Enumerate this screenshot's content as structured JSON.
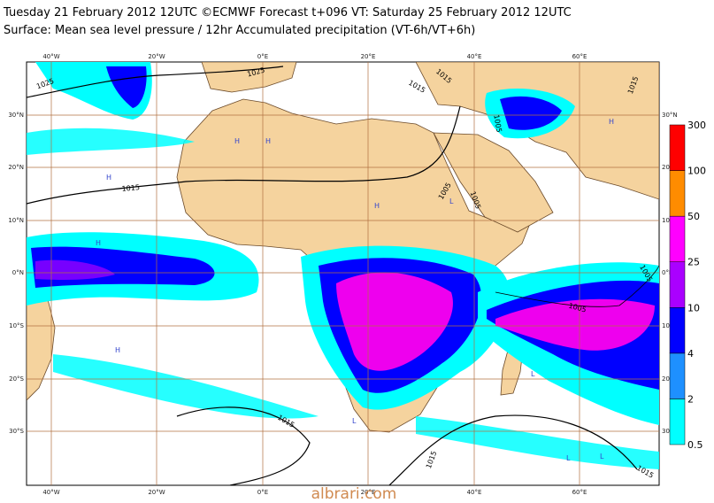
{
  "header": {
    "title": "Tuesday 21 February 2012 12UTC ©ECMWF Forecast t+096 VT: Saturday 25 February 2012 12UTC",
    "subtitle": "Surface: Mean sea level pressure / 12hr Accumulated precipitation (VT-6h/VT+6h)"
  },
  "map": {
    "lon_labels": [
      "40°W",
      "20°W",
      "0°E",
      "20°E",
      "40°E",
      "60°E"
    ],
    "lat_labels": [
      "30°N",
      "20°N",
      "10°N",
      "0°N",
      "10°S",
      "20°S",
      "30°S"
    ],
    "isobar_labels": [
      "1025",
      "1025",
      "1015",
      "1015",
      "1015",
      "1005",
      "1005",
      "1005",
      "1005",
      "1005",
      "1015",
      "1015",
      "1015",
      "1015"
    ],
    "pressure_centres": [
      "H",
      "H",
      "H",
      "H",
      "H",
      "L",
      "L",
      "L",
      "H",
      "L",
      "L",
      "H"
    ]
  },
  "legend": {
    "levels": [
      "0.5",
      "2",
      "4",
      "10",
      "25",
      "50",
      "100",
      "300"
    ],
    "colors": [
      "#00ffff",
      "#1e90ff",
      "#0000ff",
      "#aa00ff",
      "#ff00ff",
      "#ff8c00",
      "#ff0000"
    ]
  },
  "watermark": "albrari.com"
}
